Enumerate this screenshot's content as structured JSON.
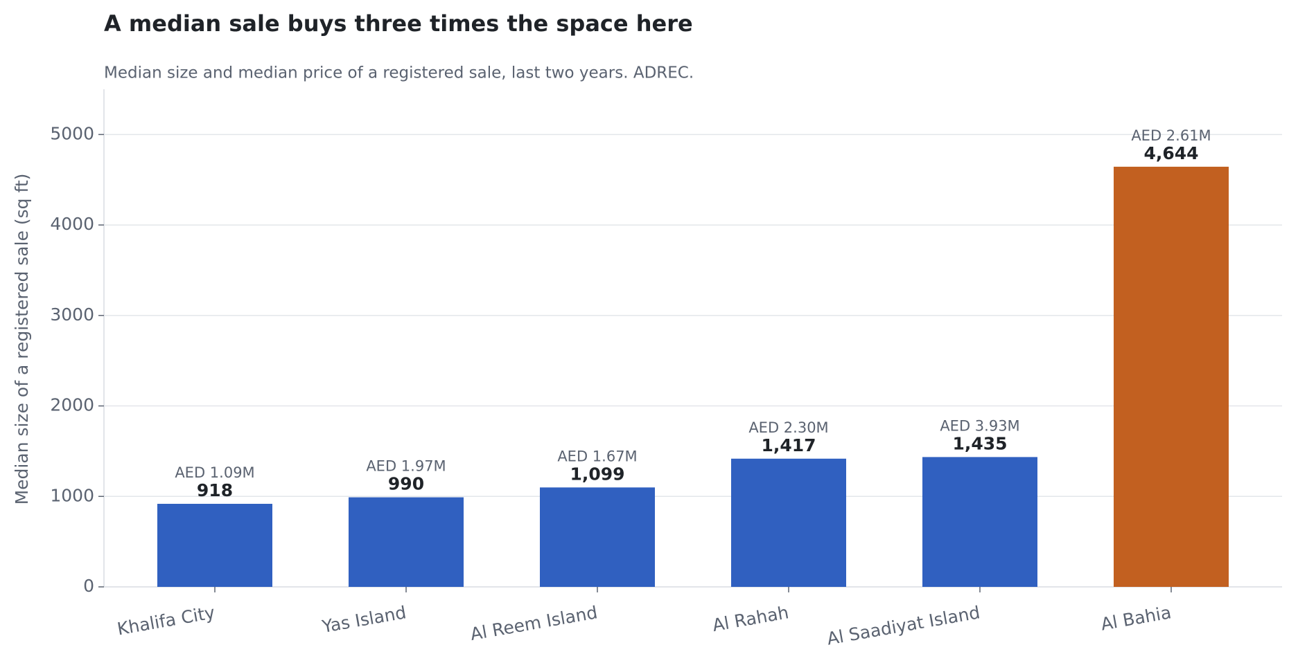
{
  "chart_data": {
    "type": "bar",
    "title": "A median sale buys three times the space here",
    "subtitle": "Median size and median price of a registered sale, last two years. ADREC.",
    "y_label": "Median size of a registered sale (sq ft)",
    "categories": [
      "Khalifa City",
      "Yas Island",
      "Al Reem Island",
      "Al Rahah",
      "Al Saadiyat Island",
      "Al Bahia"
    ],
    "values": [
      918,
      990,
      1099,
      1417,
      1435,
      4644
    ],
    "value_labels": [
      "918",
      "990",
      "1,099",
      "1,417",
      "1,435",
      "4,644"
    ],
    "annotations": [
      "AED 1.09M",
      "AED 1.97M",
      "AED 1.67M",
      "AED 2.30M",
      "AED 3.93M",
      "AED 2.61M"
    ],
    "colors": [
      "#3060c0",
      "#3060c0",
      "#3060c0",
      "#3060c0",
      "#3060c0",
      "#c26020"
    ],
    "ylim": [
      0,
      5500
    ],
    "yticks": [
      0,
      1000,
      2000,
      3000,
      4000,
      5000
    ],
    "grid": true
  }
}
